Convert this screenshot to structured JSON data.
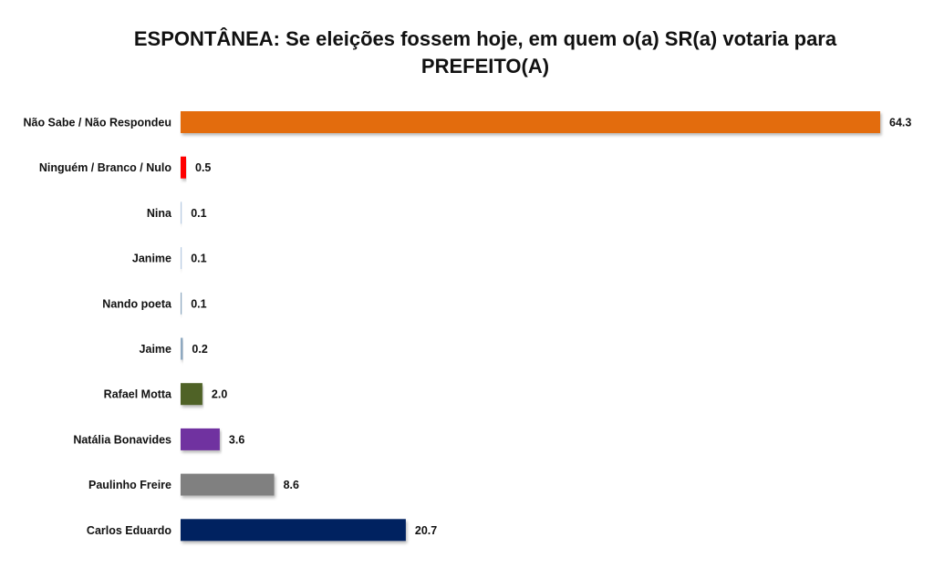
{
  "chart_data": {
    "type": "bar",
    "orientation": "horizontal",
    "title_lines": [
      "ESPONTÂNEA: Se eleições fossem hoje, em quem o(a) SR(a) votaria para",
      "PREFEITO(A)"
    ],
    "categories": [
      "Não Sabe / Não Respondeu",
      "Ninguém / Branco / Nulo",
      "Nina",
      "Janime",
      "Nando poeta",
      "Jaime",
      "Rafael Motta",
      "Natália Bonavides",
      "Paulinho Freire",
      "Carlos Eduardo"
    ],
    "values": [
      64.3,
      0.5,
      0.1,
      0.1,
      0.1,
      0.2,
      2.0,
      3.6,
      8.6,
      20.7
    ],
    "value_labels": [
      "64.3",
      "0.5",
      "0.1",
      "0.1",
      "0.1",
      "0.2",
      "2.0",
      "3.6",
      "8.6",
      "20.7"
    ],
    "colors": [
      "#E36C0A",
      "#FF0000",
      "#B8CCE4",
      "#B8CCE4",
      "#8EA9C1",
      "#8EA9C1",
      "#4F6228",
      "#7030A0",
      "#808080",
      "#002060"
    ],
    "xlim": [
      0,
      64.3
    ],
    "grid": false,
    "legend": "none"
  }
}
